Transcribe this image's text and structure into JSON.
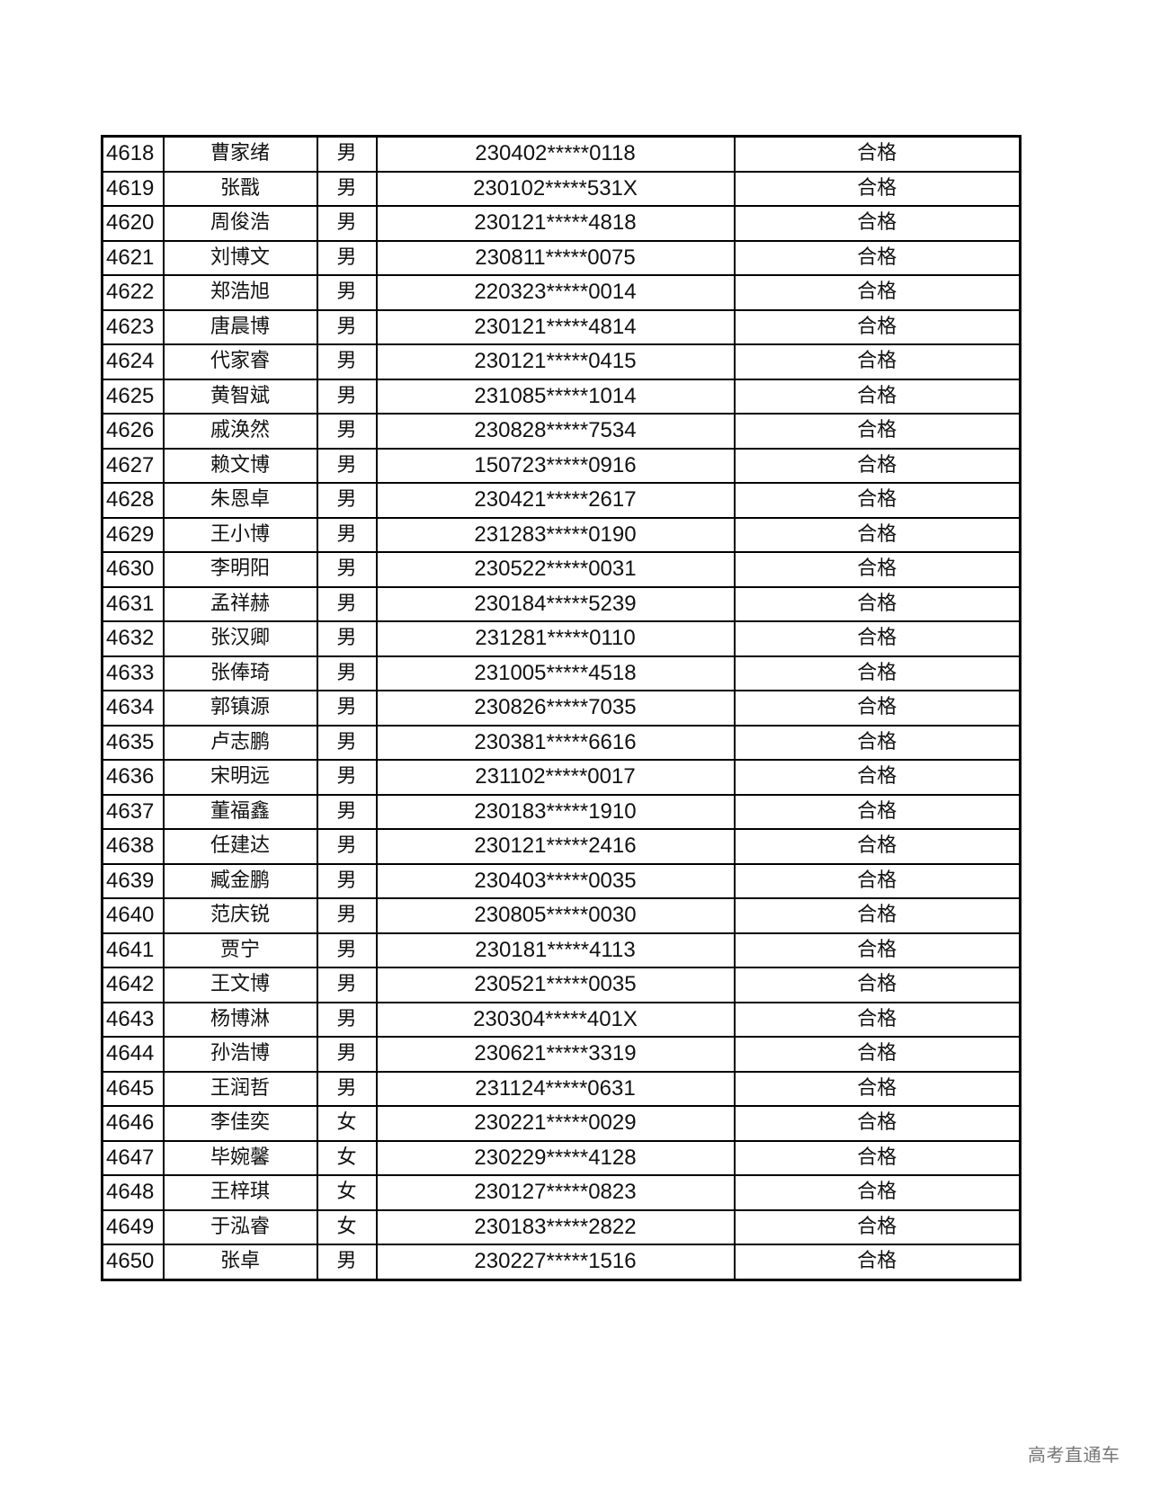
{
  "table": {
    "rows": [
      [
        "4618",
        "曹家绪",
        "男",
        "230402*****0118",
        "合格"
      ],
      [
        "4619",
        "张戬",
        "男",
        "230102*****531X",
        "合格"
      ],
      [
        "4620",
        "周俊浩",
        "男",
        "230121*****4818",
        "合格"
      ],
      [
        "4621",
        "刘博文",
        "男",
        "230811*****0075",
        "合格"
      ],
      [
        "4622",
        "郑浩旭",
        "男",
        "220323*****0014",
        "合格"
      ],
      [
        "4623",
        "唐晨博",
        "男",
        "230121*****4814",
        "合格"
      ],
      [
        "4624",
        "代家睿",
        "男",
        "230121*****0415",
        "合格"
      ],
      [
        "4625",
        "黄智斌",
        "男",
        "231085*****1014",
        "合格"
      ],
      [
        "4626",
        "戚涣然",
        "男",
        "230828*****7534",
        "合格"
      ],
      [
        "4627",
        "赖文博",
        "男",
        "150723*****0916",
        "合格"
      ],
      [
        "4628",
        "朱恩卓",
        "男",
        "230421*****2617",
        "合格"
      ],
      [
        "4629",
        "王小博",
        "男",
        "231283*****0190",
        "合格"
      ],
      [
        "4630",
        "李明阳",
        "男",
        "230522*****0031",
        "合格"
      ],
      [
        "4631",
        "孟祥赫",
        "男",
        "230184*****5239",
        "合格"
      ],
      [
        "4632",
        "张汉卿",
        "男",
        "231281*****0110",
        "合格"
      ],
      [
        "4633",
        "张俸琦",
        "男",
        "231005*****4518",
        "合格"
      ],
      [
        "4634",
        "郭镇源",
        "男",
        "230826*****7035",
        "合格"
      ],
      [
        "4635",
        "卢志鹏",
        "男",
        "230381*****6616",
        "合格"
      ],
      [
        "4636",
        "宋明远",
        "男",
        "231102*****0017",
        "合格"
      ],
      [
        "4637",
        "董福鑫",
        "男",
        "230183*****1910",
        "合格"
      ],
      [
        "4638",
        "任建达",
        "男",
        "230121*****2416",
        "合格"
      ],
      [
        "4639",
        "臧金鹏",
        "男",
        "230403*****0035",
        "合格"
      ],
      [
        "4640",
        "范庆锐",
        "男",
        "230805*****0030",
        "合格"
      ],
      [
        "4641",
        "贾宁",
        "男",
        "230181*****4113",
        "合格"
      ],
      [
        "4642",
        "王文博",
        "男",
        "230521*****0035",
        "合格"
      ],
      [
        "4643",
        "杨博淋",
        "男",
        "230304*****401X",
        "合格"
      ],
      [
        "4644",
        "孙浩博",
        "男",
        "230621*****3319",
        "合格"
      ],
      [
        "4645",
        "王润哲",
        "男",
        "231124*****0631",
        "合格"
      ],
      [
        "4646",
        "李佳奕",
        "女",
        "230221*****0029",
        "合格"
      ],
      [
        "4647",
        "毕婉馨",
        "女",
        "230229*****4128",
        "合格"
      ],
      [
        "4648",
        "王梓琪",
        "女",
        "230127*****0823",
        "合格"
      ],
      [
        "4649",
        "于泓睿",
        "女",
        "230183*****2822",
        "合格"
      ],
      [
        "4650",
        "张卓",
        "男",
        "230227*****1516",
        "合格"
      ]
    ]
  },
  "watermark": "高考直通车"
}
